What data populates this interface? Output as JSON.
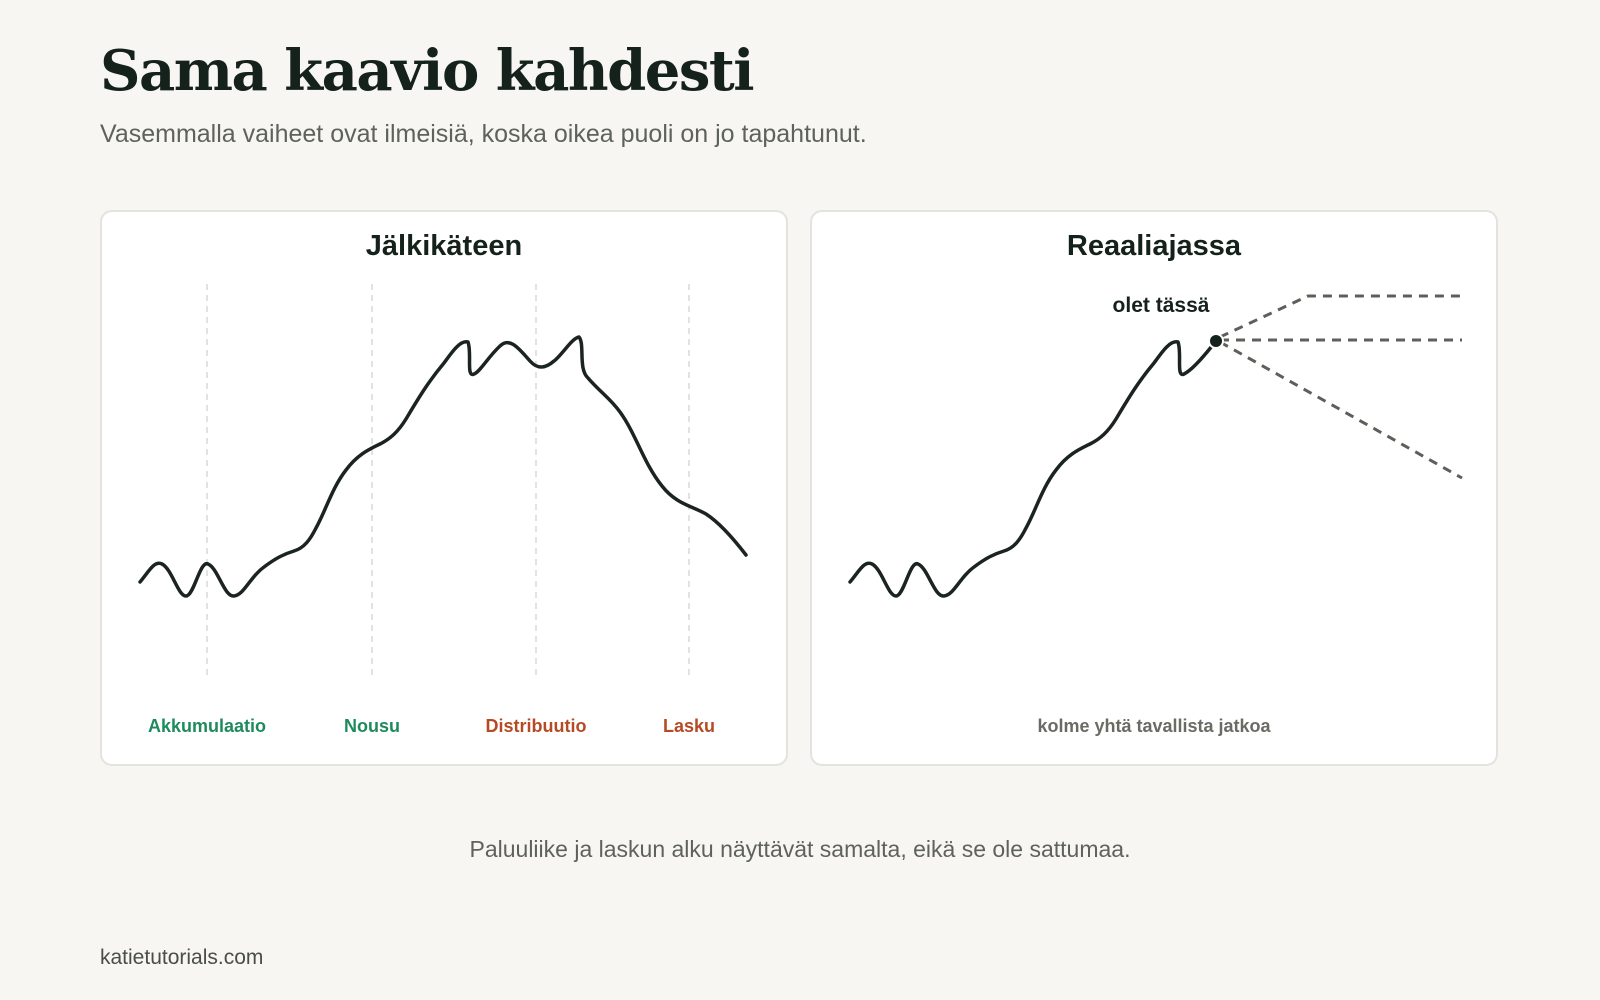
{
  "header": {
    "title": "Sama kaavio kahdesti",
    "subtitle": "Vasemmalla vaiheet ovat ilmeisiä, koska oikea puoli on jo tapahtunut."
  },
  "left_panel": {
    "title": "Jälkikäteen",
    "phases": [
      {
        "label": "Akkumulaatio",
        "color": "#1f8a5e"
      },
      {
        "label": "Nousu",
        "color": "#1f8a5e"
      },
      {
        "label": "Distribuutio",
        "color": "#b54a24"
      },
      {
        "label": "Lasku",
        "color": "#b54a24"
      }
    ]
  },
  "right_panel": {
    "title": "Reaaliajassa",
    "marker_label": "olet tässä",
    "caption": "kolme yhtä tavallista jatkoa"
  },
  "footnote": "Paluuliike ja laskun alku näyttävät samalta, eikä se ole sattumaa.",
  "site": "katietutorials.com",
  "colors": {
    "line": "#1b2420",
    "future_paths": "#5f5f5a",
    "divider": "#d8d8d4",
    "background": "#f7f6f2"
  }
}
